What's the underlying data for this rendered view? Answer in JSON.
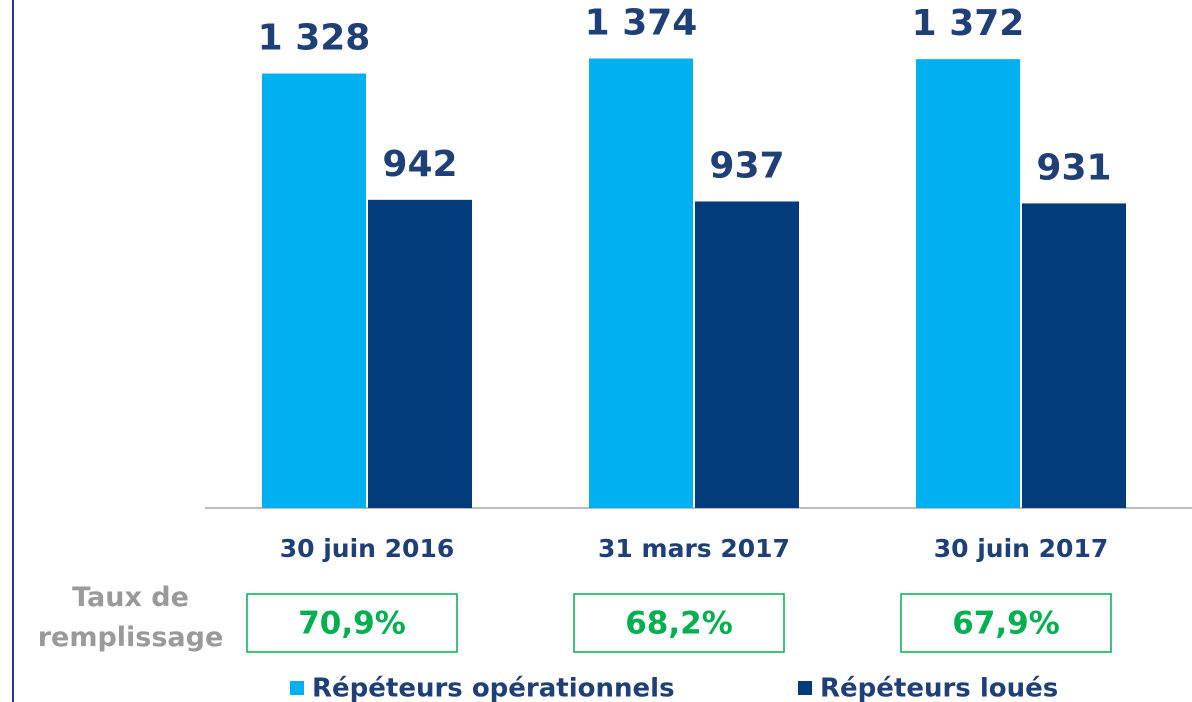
{
  "chart_data": {
    "type": "bar",
    "categories": [
      "30 juin 2016",
      "31 mars 2017",
      "30 juin 2017"
    ],
    "series": [
      {
        "name": "Répéteurs opérationnels",
        "color": "#00b0f0",
        "values": [
          1328,
          1374,
          1372
        ],
        "value_labels": [
          "1 328",
          "1 374",
          "1 372"
        ]
      },
      {
        "name": "Répéteurs loués",
        "color": "#003b7a",
        "values": [
          942,
          937,
          931
        ]
      }
    ],
    "ylim": [
      0,
      1400
    ],
    "fill_rate": {
      "label": "Taux de remplissage",
      "values": [
        70.9,
        68.2,
        67.9
      ],
      "value_labels": [
        "70,9%",
        "68,2%",
        "67,9%"
      ],
      "color": "#00b050"
    },
    "legend": "bottom"
  }
}
